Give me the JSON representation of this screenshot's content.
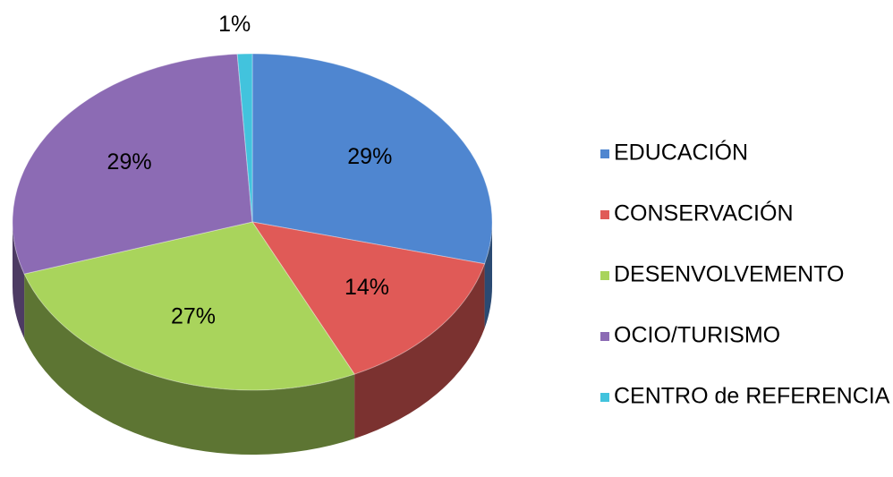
{
  "chart_data": {
    "type": "pie",
    "categories": [
      "EDUCACIÓN",
      "CONSERVACIÓN",
      "DESENVOLVEMENTO",
      "OCIO/TURISMO",
      "CENTRO de REFERENCIA"
    ],
    "values": [
      29,
      14,
      27,
      29,
      1
    ],
    "value_labels": [
      "29%",
      "14%",
      "27%",
      "29%",
      "1%"
    ],
    "colors": [
      "#4f86d0",
      "#e05a57",
      "#a9d45c",
      "#8c6bb4",
      "#42c3dd"
    ],
    "legend": "right"
  }
}
